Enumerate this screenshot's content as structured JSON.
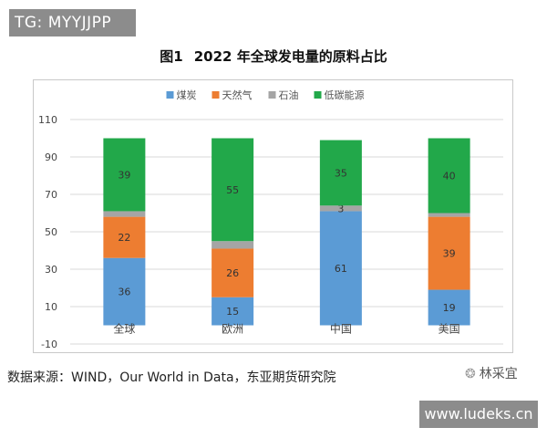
{
  "watermark_top": "TG: MYYJJPP",
  "watermark_bottom": "www.ludeks.cn",
  "figure_label": "图1",
  "title": "2022 年全球发电量的原料占比",
  "source": "数据来源：WIND，Our World in Data，东亚期货研究院",
  "logo_text": "林采宜",
  "chart_data": {
    "type": "bar",
    "stacked": true,
    "categories": [
      "全球",
      "欧洲",
      "中国",
      "美国"
    ],
    "series": [
      {
        "name": "煤炭",
        "color": "#5b9bd5",
        "values": [
          36,
          15,
          61,
          19
        ],
        "labels": [
          "36",
          "15",
          "61",
          "19"
        ]
      },
      {
        "name": "天然气",
        "color": "#ed7d31",
        "values": [
          22,
          26,
          0,
          39
        ],
        "labels": [
          "22",
          "26",
          "",
          "39"
        ]
      },
      {
        "name": "石油",
        "color": "#a5a5a5",
        "values": [
          3,
          4,
          3,
          2
        ],
        "labels": [
          "",
          "",
          "3",
          ""
        ]
      },
      {
        "name": "低碳能源",
        "color": "#22a84a",
        "values": [
          39,
          55,
          35,
          40
        ],
        "labels": [
          "39",
          "55",
          "35",
          "40"
        ]
      }
    ],
    "yticks": [
      "110",
      "90",
      "70",
      "50",
      "30",
      "10",
      "-10"
    ],
    "ylim": [
      -10,
      110
    ],
    "grid": true,
    "legend_position": "top"
  }
}
